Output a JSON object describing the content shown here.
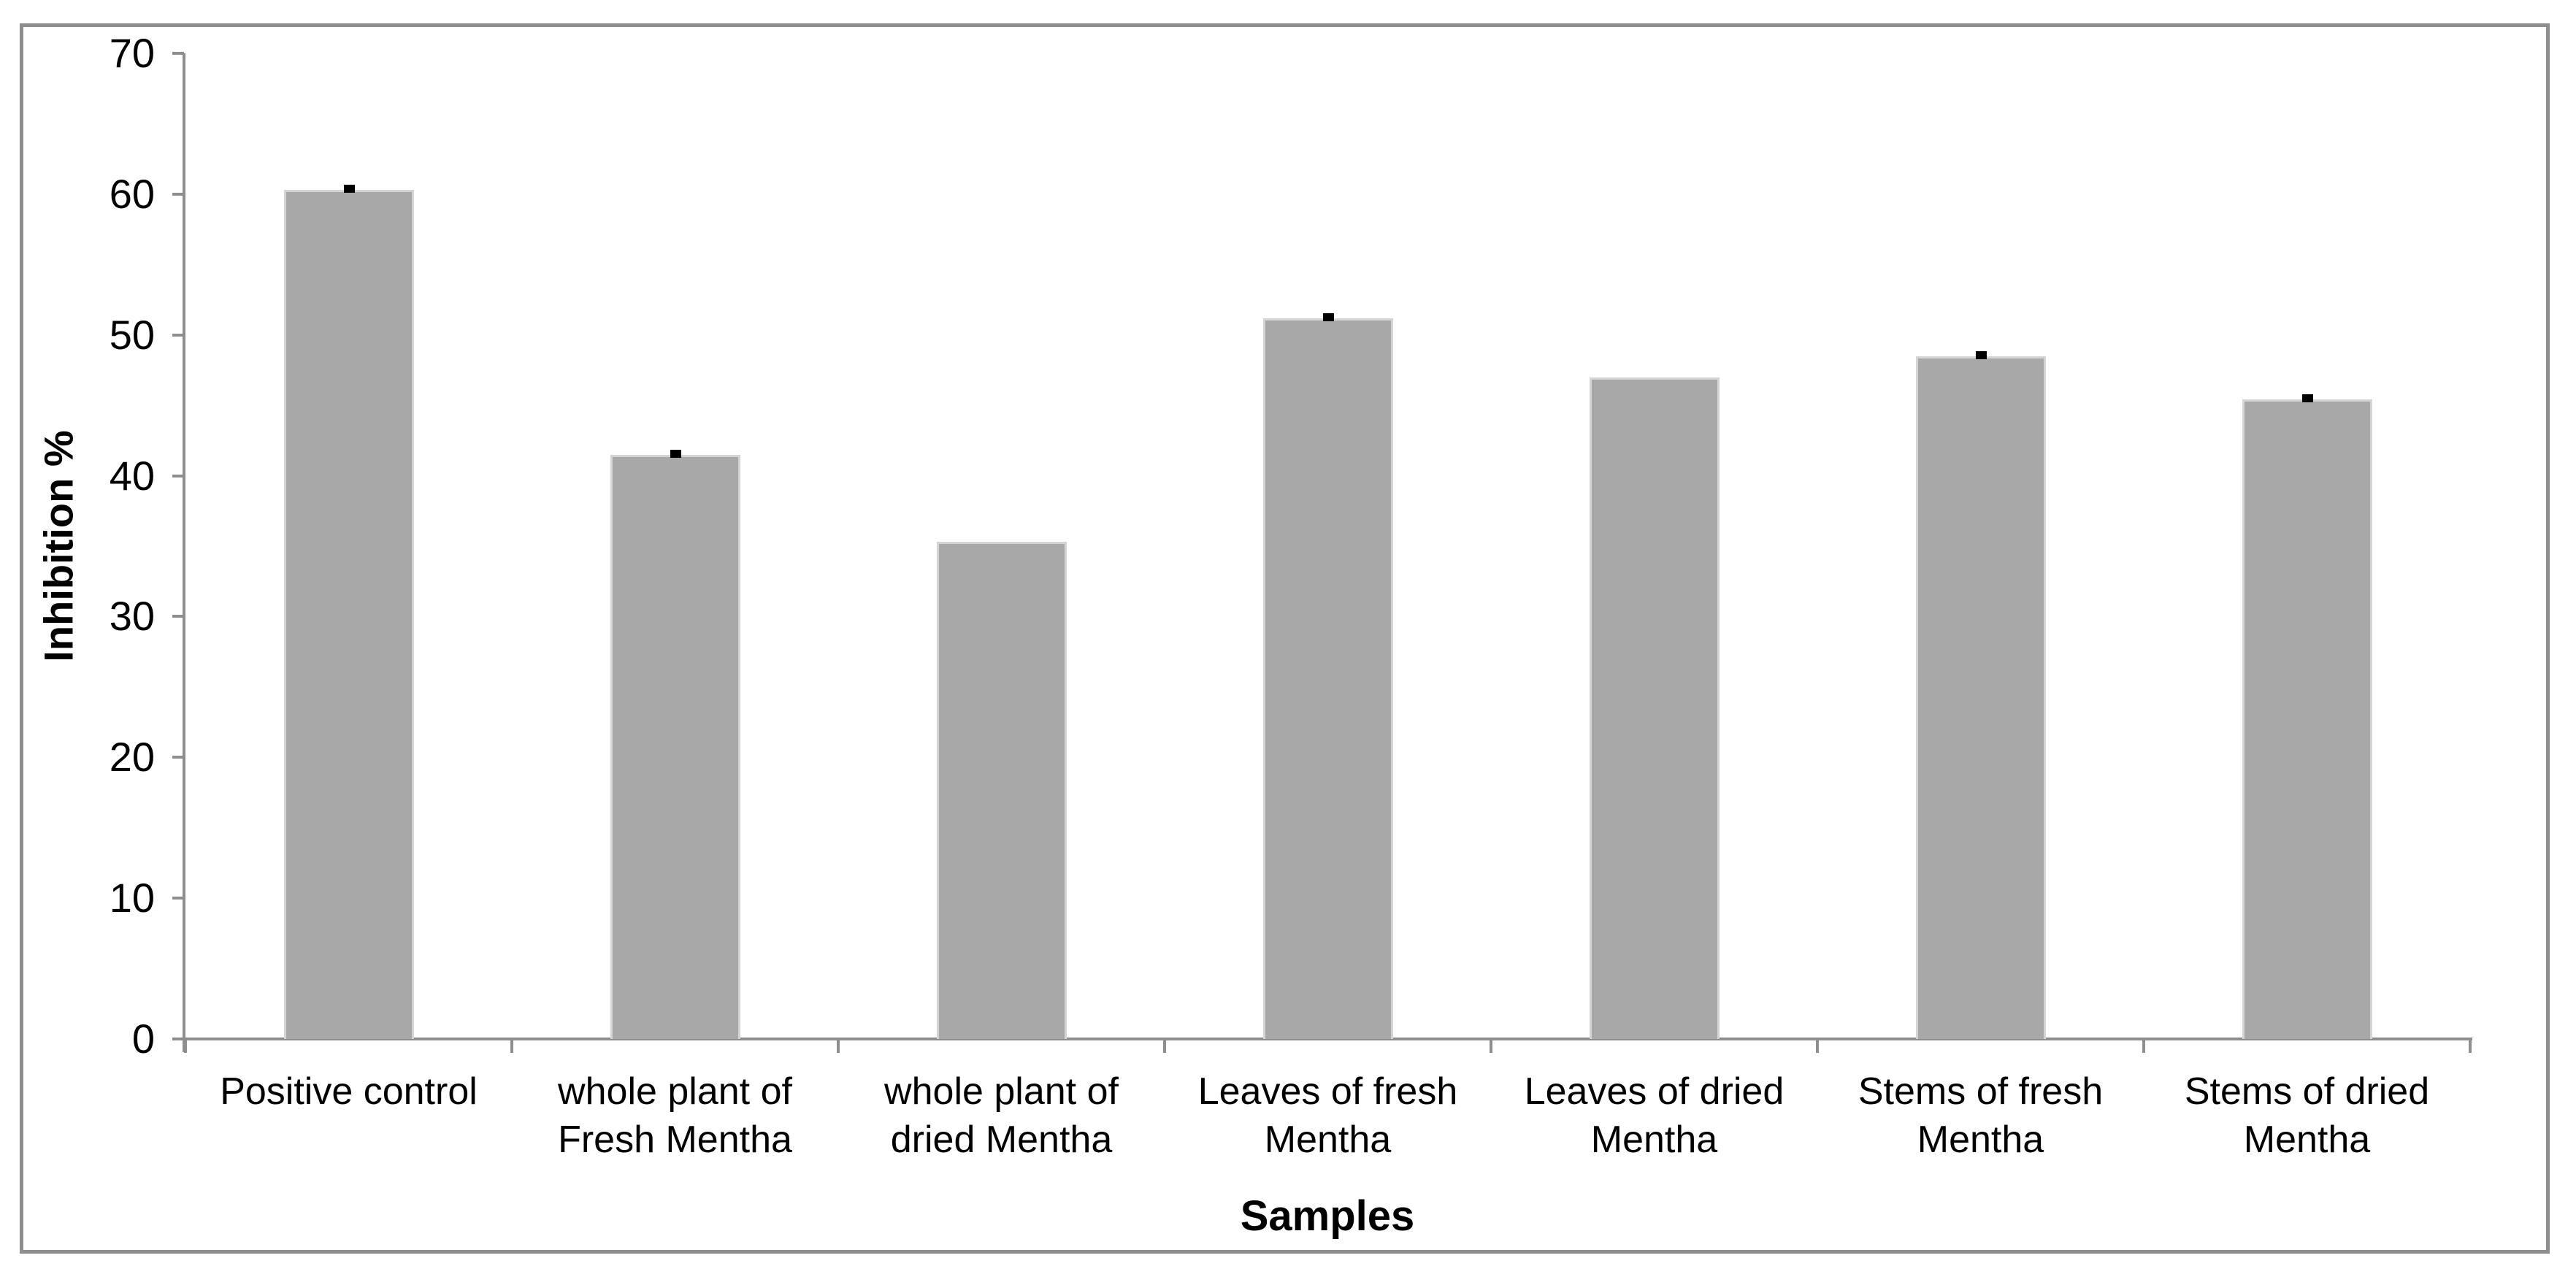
{
  "figure": {
    "background_color": "#ffffff",
    "frame_color": "#8e8e8e"
  },
  "chart_data": {
    "type": "bar",
    "title": "",
    "xlabel": "Samples",
    "ylabel": "Inhibition %",
    "categories": [
      "Positive control",
      "whole plant of Fresh Mentha",
      "whole plant of dried Mentha",
      "Leaves of fresh Mentha",
      "Leaves of dried Mentha",
      "Stems of fresh Mentha",
      "Stems of dried Mentha"
    ],
    "values": [
      60.3,
      41.5,
      35.3,
      51.2,
      47.0,
      48.5,
      45.4
    ],
    "error_caps": [
      true,
      true,
      false,
      true,
      false,
      true,
      true
    ],
    "error_value": 0.3,
    "ylim": [
      0,
      70
    ],
    "yticks": [
      0,
      10,
      20,
      30,
      40,
      50,
      60,
      70
    ],
    "grid": false,
    "legend_position": "none",
    "bar_color": "#a8a8a8",
    "bar_border_color": "#d4d4d4",
    "error_color": "#000000",
    "axis_color": "#8e8e8e",
    "text_color": "#000000"
  }
}
